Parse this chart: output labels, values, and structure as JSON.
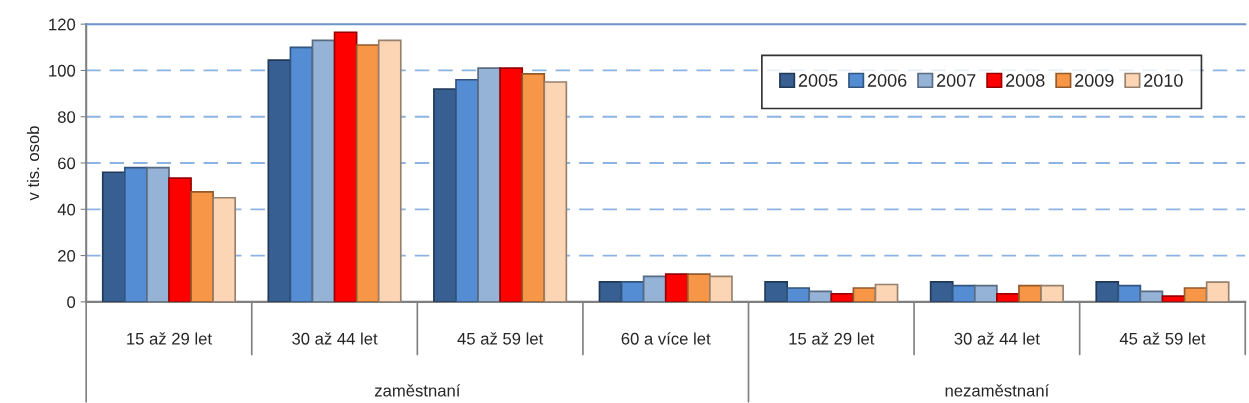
{
  "chart_data": {
    "type": "bar",
    "ylabel": "v tis. osob",
    "categories": [
      "15 až 29 let",
      "30 až 44 let",
      "45 až 59 let",
      "60 a více let",
      "15 až 29 let",
      "30 až 44 let",
      "45 až 59 let"
    ],
    "series": [
      {
        "name": "2005",
        "color": "#375f91",
        "values": [
          56,
          104.5,
          92,
          8.6,
          8.6,
          8.6,
          8.6
        ]
      },
      {
        "name": "2006",
        "color": "#548dd4",
        "values": [
          58,
          110,
          96,
          8.6,
          6,
          7,
          7
        ]
      },
      {
        "name": "2007",
        "color": "#95b3d7",
        "values": [
          58,
          113,
          101,
          11,
          4.5,
          7,
          4.5
        ]
      },
      {
        "name": "2008",
        "color": "#ff0000",
        "values": [
          53.5,
          116.5,
          101,
          12,
          3.5,
          3.5,
          2.5
        ]
      },
      {
        "name": "2009",
        "color": "#f79646",
        "values": [
          47.5,
          111,
          98.5,
          12,
          6,
          7,
          6
        ]
      },
      {
        "name": "2010",
        "color": "#fcd5b4",
        "values": [
          45,
          113,
          95,
          11,
          7.5,
          7,
          8.5
        ]
      }
    ],
    "ylim": [
      0,
      120
    ],
    "yticks": [
      0,
      20,
      40,
      60,
      80,
      100,
      120
    ],
    "grid": "y",
    "legend": "top right",
    "annotations": [
      "zaměstnaní",
      "nezaměstnaní"
    ]
  }
}
